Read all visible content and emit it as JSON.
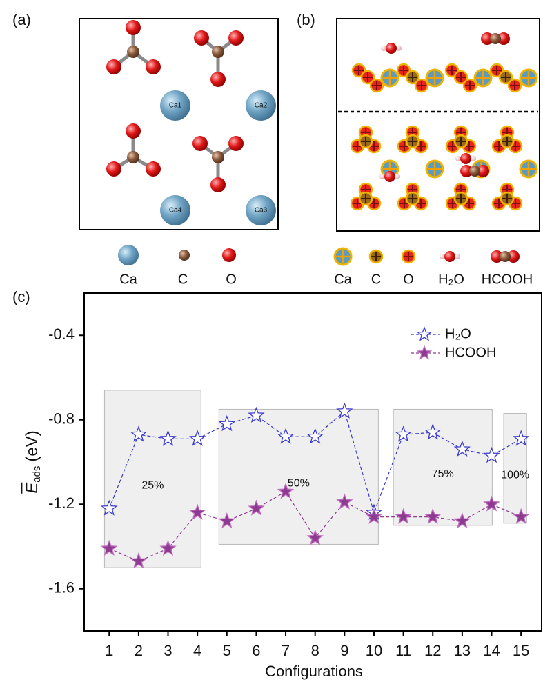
{
  "panel_a": {
    "label": "(a)",
    "atoms": [
      "Ca1",
      "Ca2",
      "Ca4",
      "Ca3"
    ],
    "legend": [
      "Ca",
      "C",
      "O"
    ]
  },
  "panel_b": {
    "label": "(b)",
    "legend": [
      "Ca",
      "C",
      "O",
      "H₂O",
      "HCOOH"
    ]
  },
  "chart_data": {
    "type": "line",
    "label": "(c)",
    "x_label": "Configurations",
    "y_label": {
      "symbol": "E",
      "subscript": "ads",
      "unit": "(eV)"
    },
    "x": [
      1,
      2,
      3,
      4,
      5,
      6,
      7,
      8,
      9,
      10,
      11,
      12,
      13,
      14,
      15
    ],
    "xlim": [
      0.15,
      15.7
    ],
    "xticks": [
      1,
      2,
      3,
      4,
      5,
      6,
      7,
      8,
      9,
      10,
      11,
      12,
      13,
      14,
      15
    ],
    "ylim": [
      -1.8,
      -0.2
    ],
    "yticks": [
      -1.6,
      -1.2,
      -0.8,
      -0.4
    ],
    "legend": "upper right",
    "series": [
      {
        "name": "H₂O",
        "color": "#3a3ad0",
        "marker": "open-star",
        "values": [
          -1.22,
          -0.87,
          -0.89,
          -0.89,
          -0.82,
          -0.78,
          -0.88,
          -0.88,
          -0.76,
          -1.24,
          -0.87,
          -0.86,
          -0.94,
          -0.97,
          -0.89
        ]
      },
      {
        "name": "HCOOH",
        "color": "#8e3a90",
        "marker": "filled-star",
        "values": [
          -1.41,
          -1.47,
          -1.41,
          -1.24,
          -1.28,
          -1.22,
          -1.14,
          -1.36,
          -1.19,
          -1.26,
          -1.26,
          -1.26,
          -1.28,
          -1.2,
          -1.26
        ]
      }
    ],
    "regions": [
      {
        "label": "25%",
        "xlim": [
          0.84,
          4.12
        ],
        "ylim": [
          -1.5,
          -0.66
        ]
      },
      {
        "label": "50%",
        "xlim": [
          4.73,
          10.15
        ],
        "ylim": [
          -1.39,
          -0.75
        ]
      },
      {
        "label": "75%",
        "xlim": [
          10.66,
          14.02
        ],
        "ylim": [
          -1.3,
          -0.75
        ]
      },
      {
        "label": "100%",
        "xlim": [
          14.41,
          15.19
        ],
        "ylim": [
          -1.29,
          -0.77
        ]
      }
    ]
  }
}
